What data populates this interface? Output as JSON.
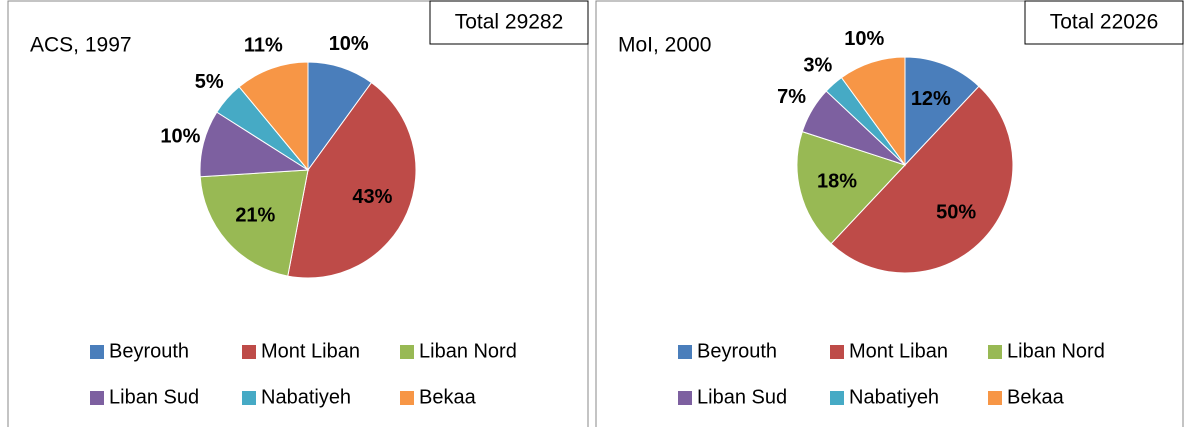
{
  "chart_data": [
    {
      "type": "pie",
      "title": "ACS, 1997",
      "annotation": "Total 29282",
      "categories": [
        "Beyrouth",
        "Mont Liban",
        "Liban Nord",
        "Liban Sud",
        "Nabatiyeh",
        "Bekaa"
      ],
      "values": [
        10,
        43,
        21,
        10,
        5,
        11
      ],
      "value_labels": [
        "10%",
        "43%",
        "21%",
        "10%",
        "5%",
        "11%"
      ],
      "colors": [
        "#4a7ebb",
        "#be4b48",
        "#98b954",
        "#7d60a0",
        "#46aac5",
        "#f79646"
      ]
    },
    {
      "type": "pie",
      "title": "MoI, 2000",
      "annotation": "Total 22026",
      "categories": [
        "Beyrouth",
        "Mont Liban",
        "Liban Nord",
        "Liban Sud",
        "Nabatiyeh",
        "Bekaa"
      ],
      "values": [
        12,
        50,
        18,
        7,
        3,
        10
      ],
      "value_labels": [
        "12%",
        "50%",
        "18%",
        "7%",
        "3%",
        "10%"
      ],
      "colors": [
        "#4a7ebb",
        "#be4b48",
        "#98b954",
        "#7d60a0",
        "#46aac5",
        "#f79646"
      ]
    }
  ]
}
